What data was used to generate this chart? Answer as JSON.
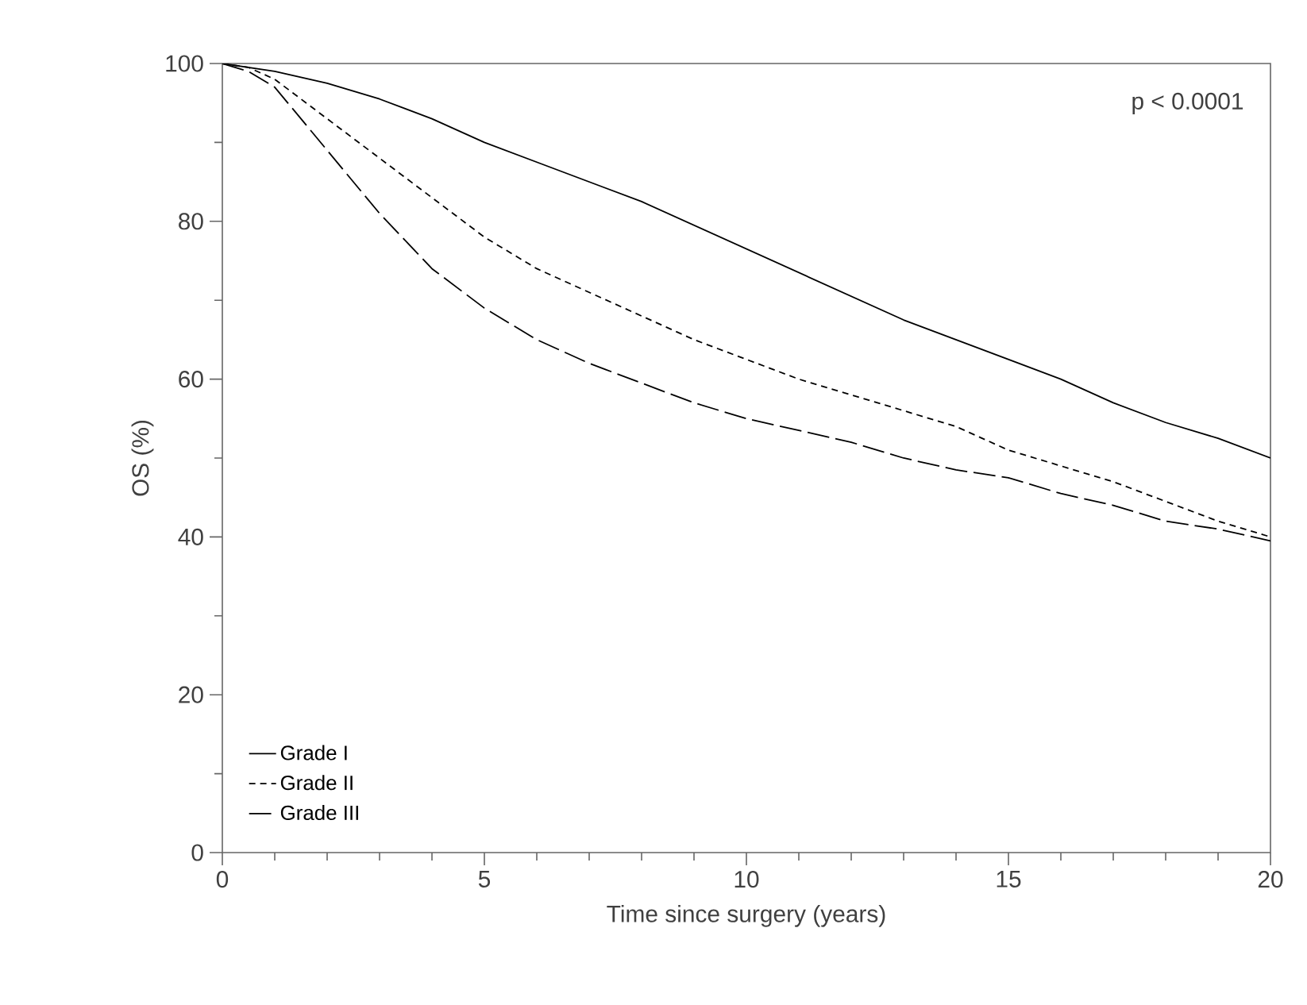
{
  "chart_data": {
    "type": "line",
    "xlabel": "Time since surgery (years)",
    "ylabel": "OS (%)",
    "annotations": [
      "p < 0.0001"
    ],
    "xlim": [
      0,
      20
    ],
    "xticks": [
      0,
      5,
      10,
      15,
      20
    ],
    "ylim": [
      0,
      100
    ],
    "yticks": [
      0,
      20,
      40,
      60,
      80,
      100
    ],
    "legend": "bottom left",
    "grid": false,
    "marker": "none",
    "series": [
      {
        "name": "Grade I",
        "color": "#000000",
        "line_style": "solid",
        "x": [
          0,
          1,
          2,
          3,
          4,
          5,
          6,
          7,
          8,
          9,
          10,
          11,
          12,
          13,
          14,
          15,
          16,
          17,
          18,
          19,
          20
        ],
        "values": [
          100,
          99,
          97.5,
          95.5,
          93,
          90,
          87.5,
          85,
          82.5,
          79.5,
          76.5,
          73.5,
          70.5,
          67.5,
          65,
          62.5,
          60,
          57,
          54.5,
          52.5,
          50
        ]
      },
      {
        "name": "Grade II",
        "color": "#000000",
        "line_style": "dotted",
        "x": [
          0,
          0.5,
          1,
          2,
          3,
          4,
          5,
          6,
          7,
          8,
          9,
          10,
          11,
          12,
          13,
          14,
          15,
          16,
          17,
          18,
          19,
          20
        ],
        "values": [
          100,
          99.5,
          98,
          93,
          88,
          83,
          78,
          74,
          71,
          68,
          65,
          62.5,
          60,
          58,
          56,
          54,
          51,
          49,
          47,
          44.5,
          42,
          40
        ]
      },
      {
        "name": "Grade III",
        "color": "#000000",
        "line_style": "dashed",
        "x": [
          0,
          0.5,
          1,
          2,
          3,
          4,
          5,
          6,
          7,
          8,
          9,
          10,
          11,
          12,
          13,
          14,
          15,
          16,
          17,
          18,
          19,
          20
        ],
        "values": [
          100,
          99,
          97,
          89,
          81,
          74,
          69,
          65,
          62,
          59.5,
          57,
          55,
          53.5,
          52,
          50,
          48.5,
          47.5,
          45.5,
          44,
          42,
          41,
          39.5
        ]
      }
    ]
  }
}
